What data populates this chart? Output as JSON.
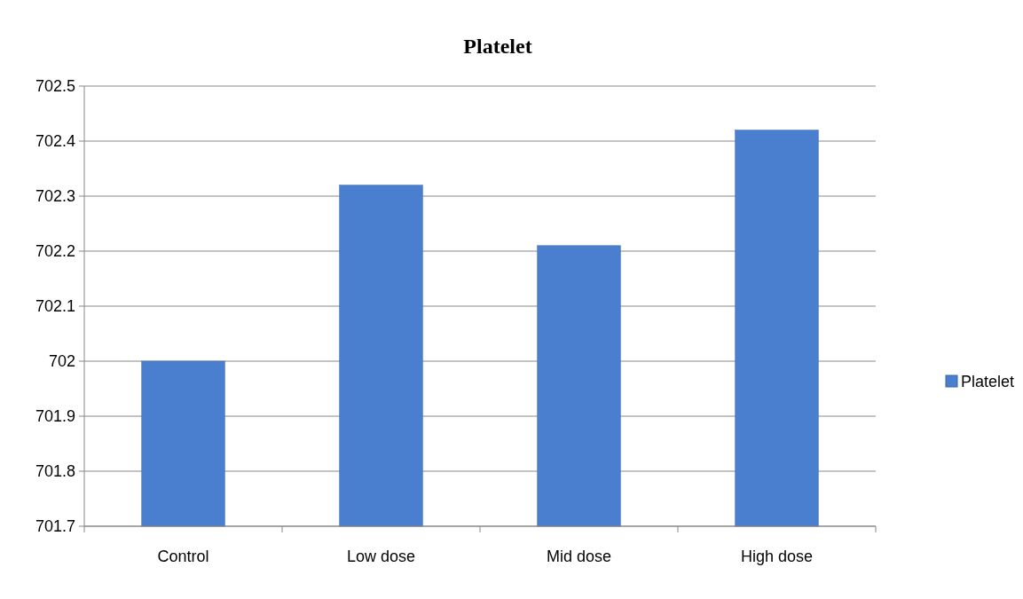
{
  "chart_data": {
    "type": "bar",
    "title": "Platelet",
    "categories": [
      "Control",
      "Low dose",
      "Mid dose",
      "High dose"
    ],
    "series": [
      {
        "name": "Platelet",
        "color": "#4a7fd0",
        "values": [
          702.0,
          702.32,
          702.21,
          702.42
        ]
      }
    ],
    "ylim": [
      701.7,
      702.5
    ],
    "yticks": [
      701.7,
      701.8,
      701.9,
      {
        "value": 702,
        "label": "702"
      },
      702.1,
      702.2,
      702.3,
      702.4,
      702.5
    ],
    "grid": "y",
    "legend": "right"
  }
}
